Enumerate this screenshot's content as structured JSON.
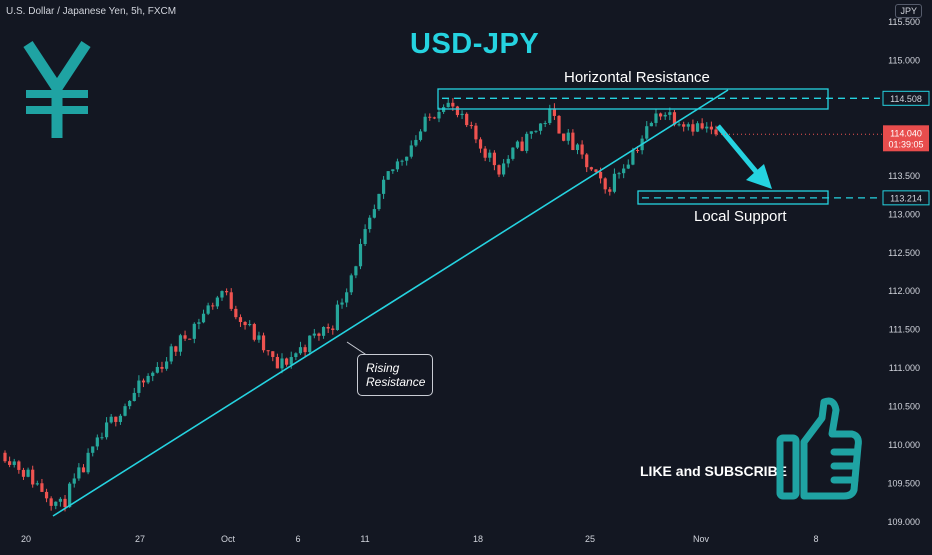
{
  "header": {
    "symbol": "U.S. Dollar / Japanese Yen, 5h, FXCM",
    "currency_button": "JPY",
    "title": "USD-JPY",
    "currency_sign": "¥"
  },
  "annotations": {
    "horizontal_resistance": "Horizontal Resistance",
    "local_support": "Local Support",
    "rising_line": [
      "Rising",
      "Resistance"
    ],
    "cta": "LIKE and SUBSCRIBE"
  },
  "price_tags": {
    "resistance": "114.508",
    "current": "114.040",
    "countdown": "01:39:05",
    "support": "113.214"
  },
  "colors": {
    "background": "#131722",
    "up": "#26a69a",
    "down": "#ef5350",
    "accent": "#25d3e0",
    "text": "#d1d4dc"
  },
  "chart_data": {
    "type": "candlestick",
    "ylim": [
      109.0,
      115.5
    ],
    "y_ticks": [
      "109.000",
      "109.500",
      "110.000",
      "110.500",
      "111.000",
      "111.500",
      "112.000",
      "112.500",
      "113.000",
      "113.500",
      "114.000",
      "114.500",
      "115.000",
      "115.500"
    ],
    "x_ticks": [
      "20",
      "27",
      "Oct",
      "6",
      "11",
      "18",
      "25",
      "Nov",
      "8"
    ],
    "resistance_level": 114.508,
    "support_level": 113.214,
    "current_price": 114.04,
    "key_closes": [
      109.9,
      109.2,
      110.4,
      111.2,
      112.0,
      111.0,
      111.6,
      113.5,
      114.5,
      113.6,
      114.3,
      113.3,
      114.35,
      114.04
    ],
    "trendline": {
      "start": [
        "Sep 21",
        109.1
      ],
      "end": [
        "Nov 1",
        114.75
      ]
    }
  }
}
